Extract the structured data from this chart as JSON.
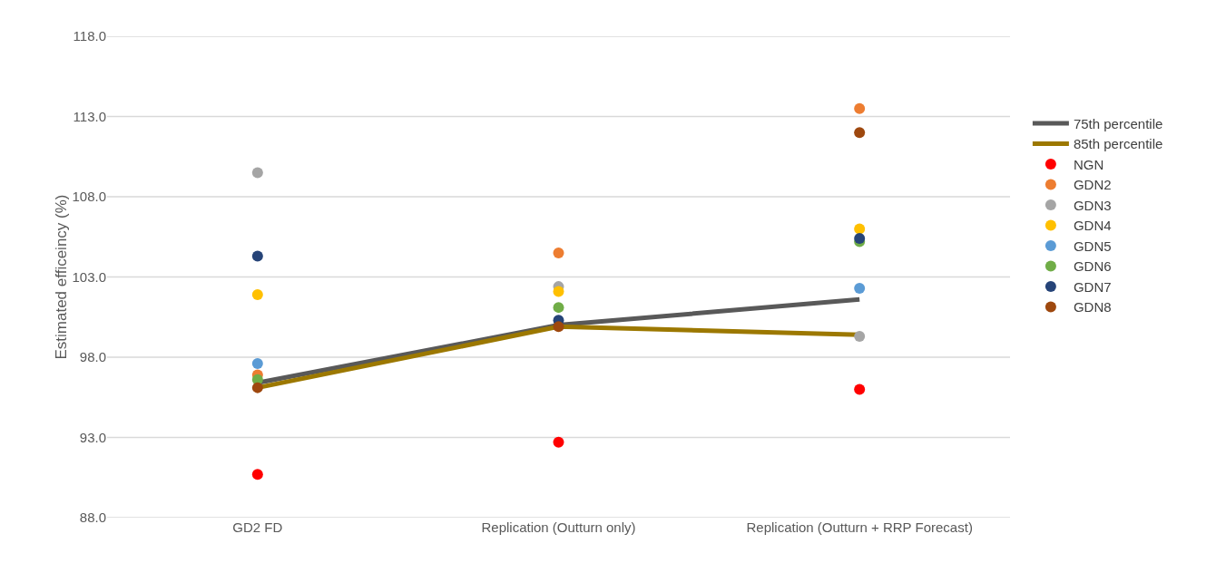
{
  "chart_data": {
    "type": "scatter",
    "ylabel": "Estimated efficeincy (%)",
    "categories": [
      "GD2 FD",
      "Replication (Outturn only)",
      "Replication (Outturn + RRP Forecast)"
    ],
    "ylim": [
      88,
      118
    ],
    "yticks": [
      {
        "value": 88,
        "label": "88.0"
      },
      {
        "value": 93,
        "label": "93.0"
      },
      {
        "value": 98,
        "label": "98.0"
      },
      {
        "value": 103,
        "label": "103.0"
      },
      {
        "value": 108,
        "label": "108.0"
      },
      {
        "value": 113,
        "label": "113.0"
      },
      {
        "value": 118,
        "label": "118.0"
      }
    ],
    "grid": "y",
    "legend": "right",
    "series": [
      {
        "name": "75th percentile",
        "type": "line",
        "marker": "none",
        "line_style": "solid",
        "color": "#595959",
        "values": [
          96.4,
          100.0,
          101.6
        ]
      },
      {
        "name": "85th percentile",
        "type": "line",
        "marker": "none",
        "line_style": "solid",
        "color": "#9c7800",
        "values": [
          96.1,
          99.9,
          99.4
        ]
      },
      {
        "name": "NGN",
        "marker": "circle",
        "color": "#ff0000",
        "values": [
          90.7,
          92.7,
          96.0
        ]
      },
      {
        "name": "GDN2",
        "marker": "circle",
        "color": "#ed7d31",
        "values": [
          96.9,
          104.5,
          113.5
        ]
      },
      {
        "name": "GDN3",
        "marker": "circle",
        "color": "#a5a5a5",
        "values": [
          109.5,
          102.4,
          99.3
        ]
      },
      {
        "name": "GDN4",
        "marker": "circle",
        "color": "#ffc000",
        "values": [
          101.9,
          102.1,
          106.0
        ]
      },
      {
        "name": "GDN5",
        "marker": "circle",
        "color": "#5b9bd5",
        "values": [
          97.6,
          null,
          102.3
        ]
      },
      {
        "name": "GDN6",
        "marker": "circle",
        "color": "#70ad47",
        "values": [
          96.6,
          101.1,
          105.2
        ]
      },
      {
        "name": "GDN7",
        "marker": "circle",
        "color": "#264478",
        "values": [
          104.3,
          100.3,
          105.4
        ]
      },
      {
        "name": "GDN8",
        "marker": "circle",
        "color": "#9e480e",
        "values": [
          96.1,
          99.9,
          112.0
        ]
      }
    ]
  }
}
